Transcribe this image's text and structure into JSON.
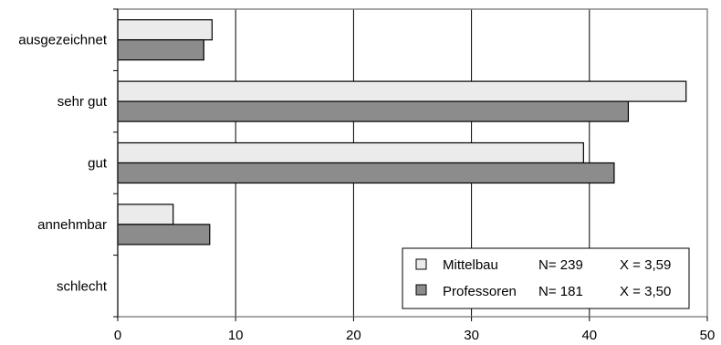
{
  "chart_data": {
    "type": "bar",
    "orientation": "horizontal",
    "categories": [
      "ausgezeichnet",
      "sehr gut",
      "gut",
      "annehmbar",
      "schlecht"
    ],
    "series": [
      {
        "name": "Mittelbau",
        "values": [
          8.0,
          48.2,
          39.5,
          4.7,
          0
        ],
        "color": "#ebebeb"
      },
      {
        "name": "Professoren",
        "values": [
          7.3,
          43.3,
          42.1,
          7.8,
          0
        ],
        "color": "#8c8c8c"
      }
    ],
    "xlim": [
      0,
      50
    ],
    "xticks": [
      0,
      10,
      20,
      30,
      40,
      50
    ],
    "grid": "vertical",
    "legend": {
      "position": "bottom-right",
      "entries": [
        {
          "label": "Mittelbau",
          "n": "N= 239",
          "mean": "X = 3,59"
        },
        {
          "label": "Professoren",
          "n": "N= 181",
          "mean": "X = 3,50"
        }
      ]
    }
  }
}
